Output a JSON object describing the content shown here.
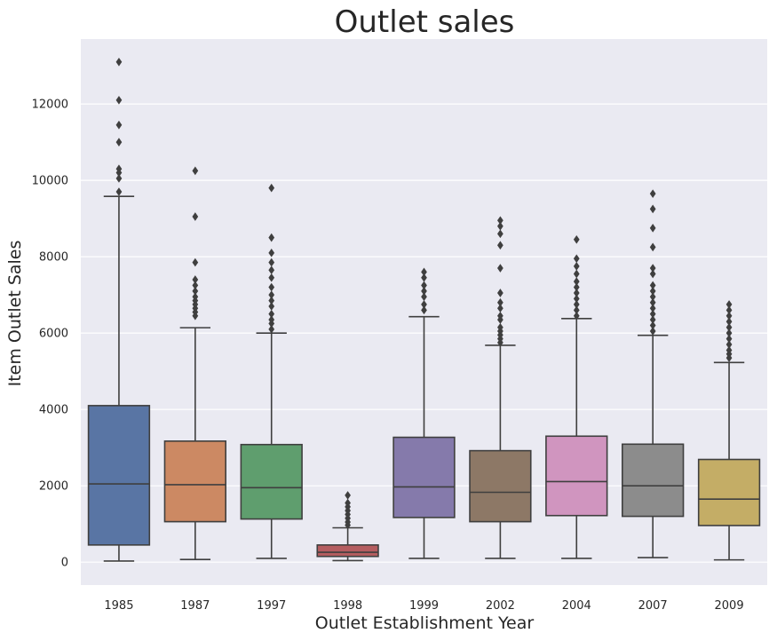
{
  "chart_data": {
    "type": "box",
    "title": "Outlet sales",
    "xlabel": "Outlet Establishment Year",
    "ylabel": "Item Outlet Sales",
    "ylim": [
      -600,
      13700
    ],
    "yticks": [
      0,
      2000,
      4000,
      6000,
      8000,
      10000,
      12000
    ],
    "grid": true,
    "background": "#eaeaf2",
    "edge_color": "#3f3f3f",
    "categories": [
      "1985",
      "1987",
      "1997",
      "1998",
      "1999",
      "2002",
      "2004",
      "2007",
      "2009"
    ],
    "boxes": [
      {
        "category": "1985",
        "color": "#5975a4",
        "whisker_low": 30,
        "q1": 450,
        "median": 2050,
        "q3": 4100,
        "whisker_high": 9580,
        "outliers": [
          9700,
          10050,
          10200,
          10300,
          11000,
          11450,
          12100,
          13100
        ]
      },
      {
        "category": "1987",
        "color": "#cc8963",
        "whisker_low": 70,
        "q1": 1060,
        "median": 2030,
        "q3": 3170,
        "whisker_high": 6140,
        "outliers": [
          6450,
          6550,
          6650,
          6750,
          6850,
          6950,
          7100,
          7250,
          7400,
          7850,
          9050,
          10250
        ]
      },
      {
        "category": "1997",
        "color": "#5f9e6e",
        "whisker_low": 100,
        "q1": 1130,
        "median": 1950,
        "q3": 3080,
        "whisker_high": 6000,
        "outliers": [
          6100,
          6250,
          6350,
          6500,
          6700,
          6850,
          7000,
          7200,
          7450,
          7650,
          7850,
          8100,
          8500,
          9800
        ]
      },
      {
        "category": "1998",
        "color": "#b55d60",
        "whisker_low": 40,
        "q1": 150,
        "median": 260,
        "q3": 450,
        "whisker_high": 900,
        "outliers": [
          970,
          1050,
          1150,
          1250,
          1350,
          1450,
          1550,
          1750
        ]
      },
      {
        "category": "1999",
        "color": "#857aab",
        "whisker_low": 100,
        "q1": 1170,
        "median": 1970,
        "q3": 3270,
        "whisker_high": 6430,
        "outliers": [
          6600,
          6750,
          6950,
          7100,
          7250,
          7450,
          7600
        ]
      },
      {
        "category": "2002",
        "color": "#8d7866",
        "whisker_low": 100,
        "q1": 1060,
        "median": 1830,
        "q3": 2920,
        "whisker_high": 5680,
        "outliers": [
          5750,
          5850,
          5950,
          6050,
          6150,
          6350,
          6450,
          6650,
          6800,
          7050,
          7700,
          8300,
          8600,
          8800,
          8950
        ]
      },
      {
        "category": "2004",
        "color": "#d095bf",
        "whisker_low": 100,
        "q1": 1220,
        "median": 2110,
        "q3": 3300,
        "whisker_high": 6380,
        "outliers": [
          6450,
          6600,
          6750,
          6900,
          7050,
          7200,
          7350,
          7550,
          7750,
          7950,
          8450
        ]
      },
      {
        "category": "2007",
        "color": "#8c8c8c",
        "whisker_low": 120,
        "q1": 1200,
        "median": 2000,
        "q3": 3090,
        "whisker_high": 5940,
        "outliers": [
          6050,
          6200,
          6350,
          6500,
          6650,
          6800,
          6950,
          7100,
          7250,
          7550,
          7700,
          8250,
          8750,
          9250,
          9650
        ]
      },
      {
        "category": "2009",
        "color": "#c4ad66",
        "whisker_low": 60,
        "q1": 960,
        "median": 1650,
        "q3": 2690,
        "whisker_high": 5230,
        "outliers": [
          5350,
          5450,
          5550,
          5700,
          5850,
          6000,
          6150,
          6300,
          6450,
          6600,
          6750
        ]
      }
    ]
  }
}
